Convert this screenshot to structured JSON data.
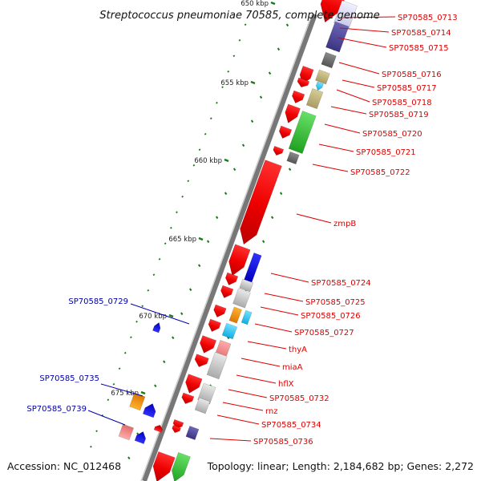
{
  "title": "Streptococcus pneumoniae 70585, complete genome",
  "footer": {
    "accession": "Accession: NC_012468",
    "summary": "Topology: linear; Length: 2,184,682 bp; Genes: 2,272"
  },
  "colors": {
    "forward_label": "#dd0000",
    "reverse_label": "#0000aa",
    "backbone": "#777777",
    "tick": "#1a7a1a"
  },
  "ruler": [
    {
      "label": "650 kbp"
    },
    {
      "label": "655 kbp"
    },
    {
      "label": "660 kbp"
    },
    {
      "label": "665 kbp"
    },
    {
      "label": "670 kbp"
    },
    {
      "label": "675 kbp"
    }
  ],
  "forward_labels": [
    "SP70585_0713",
    "SP70585_0714",
    "SP70585_0715",
    "SP70585_0716",
    "SP70585_0717",
    "SP70585_0718",
    "SP70585_0719",
    "SP70585_0720",
    "SP70585_0721",
    "SP70585_0722",
    "zmpB",
    "SP70585_0724",
    "SP70585_0725",
    "SP70585_0726",
    "SP70585_0727",
    "thyA",
    "miaA",
    "hflX",
    "SP70585_0732",
    "rnz",
    "SP70585_0734",
    "SP70585_0736"
  ],
  "reverse_labels": [
    "SP70585_0729",
    "SP70585_0735",
    "SP70585_0739"
  ],
  "feature_colors": [
    "red",
    "blue",
    "purple",
    "gray",
    "tan",
    "cyan",
    "green",
    "orange",
    "pink",
    "silver"
  ],
  "features": [
    {
      "label": "SP70585_0713",
      "color": "red",
      "strand": "forward"
    },
    {
      "label": "SP70585_0714",
      "color": "purple",
      "strand": "forward"
    },
    {
      "label": "SP70585_0715",
      "color": "gray",
      "strand": "forward"
    },
    {
      "label": "SP70585_0716",
      "color": "tan",
      "strand": "forward"
    },
    {
      "label": "SP70585_0717",
      "color": "cyan",
      "strand": "forward"
    },
    {
      "label": "SP70585_0718",
      "color": "tan",
      "strand": "forward"
    },
    {
      "label": "SP70585_0720",
      "color": "green",
      "strand": "forward"
    },
    {
      "label": "SP70585_0722",
      "color": "gray",
      "strand": "forward"
    },
    {
      "label": "zmpB",
      "color": "red",
      "strand": "forward"
    },
    {
      "label": "SP70585_0724",
      "color": "blue",
      "strand": "forward"
    },
    {
      "label": "SP70585_0725",
      "color": "silver",
      "strand": "forward"
    },
    {
      "label": "SP70585_0726",
      "color": "orange",
      "strand": "forward"
    },
    {
      "label": "SP70585_0727",
      "color": "cyan",
      "strand": "forward"
    },
    {
      "label": "thyA",
      "color": "pink",
      "strand": "forward"
    },
    {
      "label": "miaA",
      "color": "silver",
      "strand": "forward"
    },
    {
      "label": "SP70585_0732",
      "color": "silver",
      "strand": "forward"
    },
    {
      "label": "SP70585_0734",
      "color": "purple",
      "strand": "forward"
    },
    {
      "label": "SP70585_0729",
      "color": "blue",
      "strand": "reverse"
    },
    {
      "label": "SP70585_0735",
      "color": "orange",
      "strand": "reverse"
    },
    {
      "label": "SP70585_0739",
      "color": "pink",
      "strand": "reverse"
    }
  ]
}
